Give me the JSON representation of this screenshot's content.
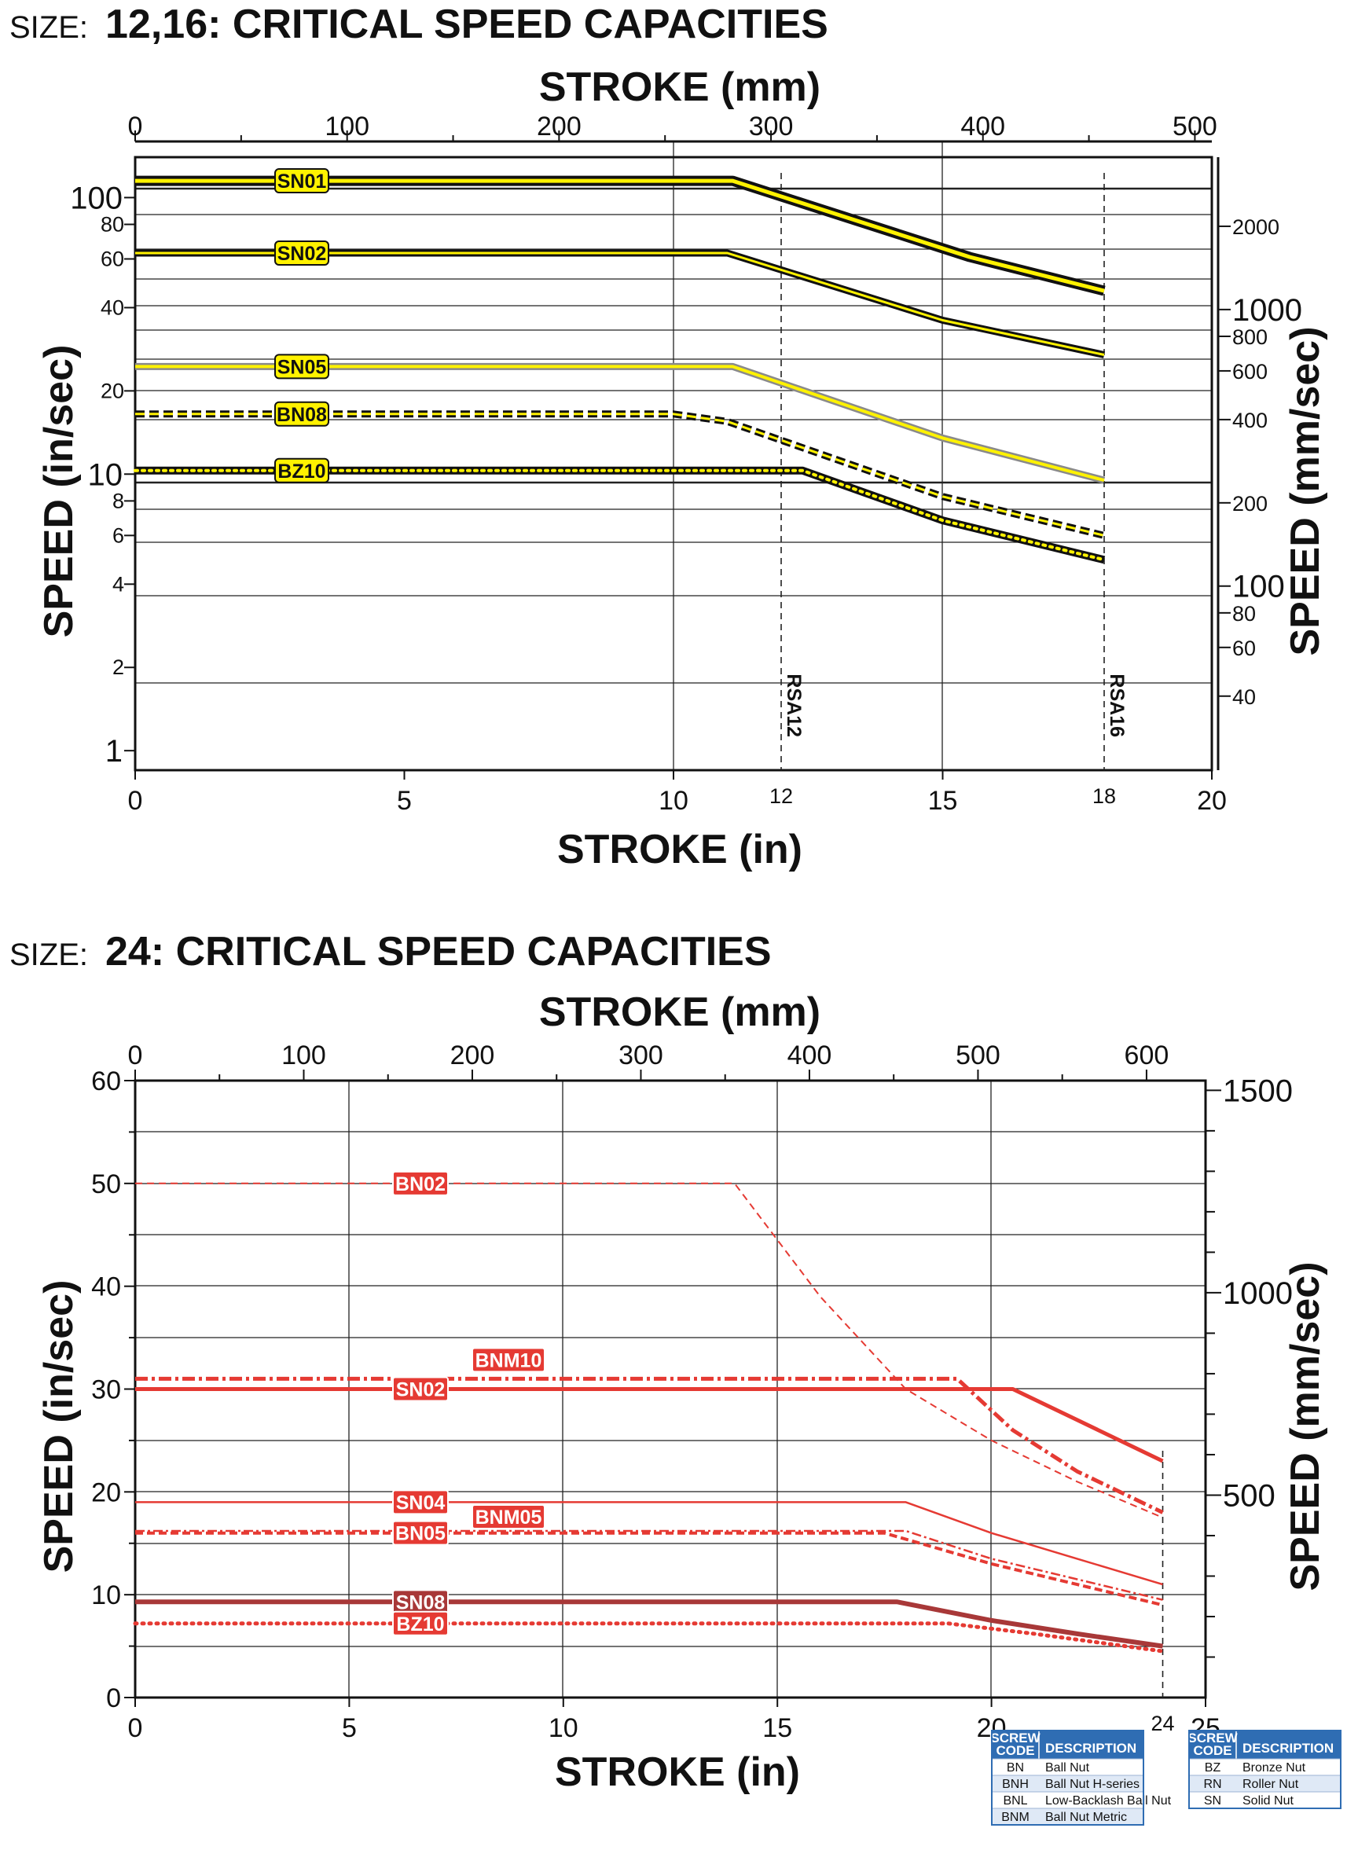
{
  "colors": {
    "yellow": "#fff200",
    "black": "#111111",
    "gray": "#8a8a8a",
    "red": "#e53a33",
    "dark_red": "#a83838",
    "legend_header": "#2f6db3",
    "legend_row_alt": "#dfe9f6"
  },
  "chart_data": [
    {
      "type": "line",
      "size_prefix": "SIZE:",
      "title": "12,16: CRITICAL SPEED CAPACITIES",
      "xlabel_top": "STROKE (mm)",
      "xlabel": "STROKE (in)",
      "ylabel": "SPEED (in/sec)",
      "ylabel_right": "SPEED (mm/sec)",
      "yscale": "log",
      "xlim": [
        0,
        20
      ],
      "ylim": [
        0.85,
        140
      ],
      "x_ticks": [
        "0",
        "5",
        "10",
        "15",
        "20"
      ],
      "x_ticks_special": [
        "12",
        "18"
      ],
      "x_top_ticks": [
        "0",
        "100",
        "200",
        "300",
        "400",
        "500"
      ],
      "y_ticks": [
        "1",
        "2",
        "4",
        "6",
        "8",
        "10",
        "20",
        "40",
        "60",
        "80",
        "100"
      ],
      "y_right_ticks": [
        "40",
        "60",
        "80",
        "100",
        "200",
        "400",
        "600",
        "800",
        "1000",
        "2000"
      ],
      "reference_lines": [
        {
          "x": 12,
          "label": "RSA12"
        },
        {
          "x": 18,
          "label": "RSA16"
        }
      ],
      "series": [
        {
          "name": "SN01",
          "style": "black-yellow-thick",
          "x": [
            0,
            11.1,
            15.5,
            18
          ],
          "y": [
            115,
            115,
            61,
            46
          ]
        },
        {
          "name": "SN02",
          "style": "black-yellow-thin",
          "x": [
            0,
            11,
            15,
            18
          ],
          "y": [
            63,
            63,
            36,
            27
          ]
        },
        {
          "name": "SN05",
          "style": "gray-yellow",
          "x": [
            0,
            11.1,
            15,
            18
          ],
          "y": [
            24.5,
            24.5,
            13.5,
            9.5
          ]
        },
        {
          "name": "BN08",
          "style": "black-yellow-dashed",
          "x": [
            0,
            10,
            11,
            15,
            18
          ],
          "y": [
            16.5,
            16.5,
            15.5,
            8.3,
            6
          ]
        },
        {
          "name": "BZ10",
          "style": "black-yellow-dotted",
          "x": [
            0,
            12.4,
            15,
            18
          ],
          "y": [
            10.3,
            10.3,
            6.8,
            4.9
          ]
        }
      ]
    },
    {
      "type": "line",
      "size_prefix": "SIZE:",
      "title": "24: CRITICAL SPEED CAPACITIES",
      "xlabel_top": "STROKE (mm)",
      "xlabel": "STROKE (in)",
      "ylabel": "SPEED (in/sec)",
      "ylabel_right": "SPEED (mm/sec)",
      "yscale": "linear",
      "xlim": [
        0,
        25
      ],
      "ylim": [
        0,
        60
      ],
      "x_ticks": [
        "0",
        "5",
        "10",
        "15",
        "20",
        "25"
      ],
      "x_ticks_special": [
        "24"
      ],
      "x_top_ticks": [
        "0",
        "100",
        "200",
        "300",
        "400",
        "500",
        "600"
      ],
      "y_ticks": [
        "0",
        "10",
        "20",
        "30",
        "40",
        "50",
        "60"
      ],
      "y_right_ticks": [
        "500",
        "1000",
        "1500"
      ],
      "reference_lines": [
        {
          "x": 24,
          "label": ""
        }
      ],
      "series": [
        {
          "name": "BN02",
          "style": "red-dashed-thin",
          "x": [
            0,
            14,
            16,
            18,
            20,
            22,
            24
          ],
          "y": [
            50,
            50,
            39,
            30,
            25,
            21,
            17.5
          ]
        },
        {
          "name": "BNM10",
          "style": "red-dashdot",
          "x": [
            0,
            19.2,
            20.5,
            22,
            24
          ],
          "y": [
            31,
            31,
            26,
            22,
            18
          ]
        },
        {
          "name": "SN02",
          "style": "red-solid-thick",
          "x": [
            0,
            20.5,
            22,
            24
          ],
          "y": [
            30,
            30,
            27,
            23
          ]
        },
        {
          "name": "SN04",
          "style": "red-solid-thin",
          "x": [
            0,
            18,
            20,
            22,
            24
          ],
          "y": [
            19,
            19,
            16,
            13.5,
            11
          ]
        },
        {
          "name": "BNM05",
          "style": "red-dashdot-thin",
          "x": [
            0,
            18,
            20,
            22,
            24
          ],
          "y": [
            16.2,
            16.2,
            13.5,
            11.5,
            9.5
          ]
        },
        {
          "name": "BN05",
          "style": "red-dashed",
          "x": [
            0,
            17.5,
            20,
            22,
            24
          ],
          "y": [
            16,
            16,
            13,
            11,
            9
          ]
        },
        {
          "name": "SN08",
          "style": "darkred-solid-thick",
          "x": [
            0,
            17.8,
            20,
            22,
            24
          ],
          "y": [
            9.3,
            9.3,
            7.5,
            6.2,
            5
          ]
        },
        {
          "name": "BZ10",
          "style": "red-dotted",
          "x": [
            0,
            19,
            21,
            24
          ],
          "y": [
            7.2,
            7.2,
            6.2,
            4.5
          ]
        }
      ]
    }
  ],
  "legend_tables": [
    {
      "headers": [
        "SCREW CODE",
        "DESCRIPTION"
      ],
      "rows": [
        [
          "BN",
          "Ball Nut"
        ],
        [
          "BNH",
          "Ball Nut H-series"
        ],
        [
          "BNL",
          "Low-Backlash Ball Nut"
        ],
        [
          "BNM",
          "Ball Nut Metric"
        ]
      ]
    },
    {
      "headers": [
        "SCREW CODE",
        "DESCRIPTION"
      ],
      "rows": [
        [
          "BZ",
          "Bronze Nut"
        ],
        [
          "RN",
          "Roller Nut"
        ],
        [
          "SN",
          "Solid Nut"
        ]
      ]
    }
  ]
}
